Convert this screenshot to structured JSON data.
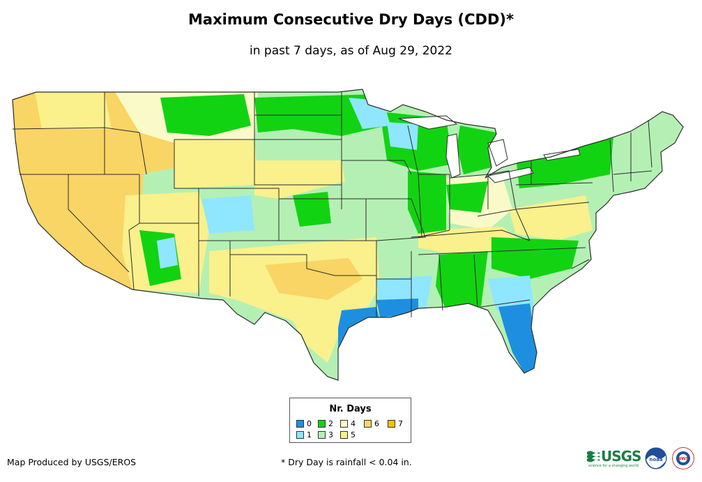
{
  "title": "Maximum Consecutive Dry Days (CDD)*",
  "subtitle": "in past 7 days, as of Aug 29, 2022",
  "legend": {
    "title": "Nr. Days",
    "items": [
      {
        "label": "0",
        "color": "#1e8fe0"
      },
      {
        "label": "1",
        "color": "#8fe6ff"
      },
      {
        "label": "2",
        "color": "#12d312"
      },
      {
        "label": "3",
        "color": "#b4f0b4"
      },
      {
        "label": "4",
        "color": "#fafac8"
      },
      {
        "label": "5",
        "color": "#faf08c"
      },
      {
        "label": "6",
        "color": "#f8d565"
      },
      {
        "label": "7",
        "color": "#f5c000"
      }
    ]
  },
  "footer": {
    "credit": "Map Produced by USGS/EROS",
    "note": "* Dry Day is rainfall < 0.04 in."
  },
  "logos": {
    "usgs": "USGS",
    "usgs_tagline": "science for a changing world",
    "noaa": "noaa",
    "nws": "NWS"
  },
  "colors": {
    "state_border": "#2b2b2b",
    "background": "#ffffff"
  }
}
